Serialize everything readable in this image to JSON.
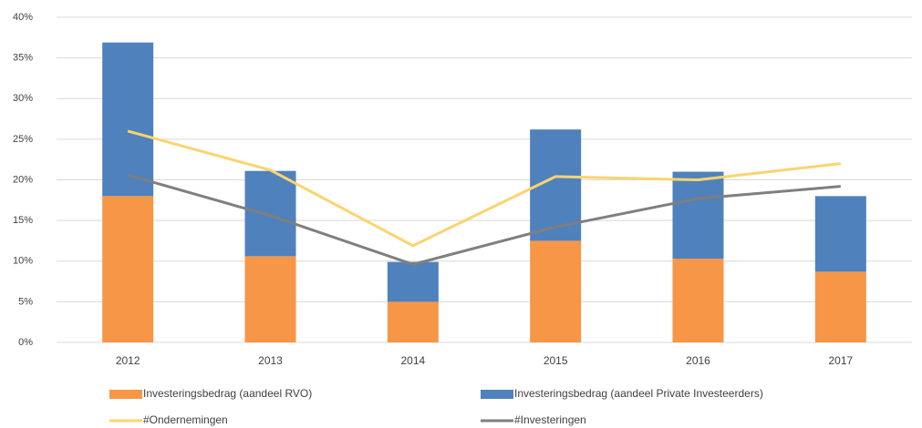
{
  "chart_data": {
    "type": "bar_line",
    "categories": [
      "2012",
      "2013",
      "2014",
      "2015",
      "2016",
      "2017"
    ],
    "series": [
      {
        "name": "Investeringsbedrag (aandeel RVO)",
        "type": "bar",
        "color": "#f79646",
        "values": [
          18,
          10.6,
          5,
          12.5,
          10.3,
          8.7
        ]
      },
      {
        "name": "Investeringsbedrag (aandeel Private Investeerders)",
        "type": "bar",
        "color": "#4f81bd",
        "values": [
          18.9,
          10.5,
          4.9,
          13.7,
          10.7,
          9.3
        ]
      },
      {
        "name": "#Ondernemingen",
        "type": "line",
        "color": "#fbd46d",
        "values": [
          26,
          21.2,
          11.9,
          20.4,
          20,
          22
        ]
      },
      {
        "name": "#Investeringen",
        "type": "line",
        "color": "#7f7f7f",
        "values": [
          20.6,
          15.6,
          9.6,
          14.2,
          17.7,
          19.2
        ]
      }
    ],
    "stacked": true,
    "ylim": [
      0,
      40
    ],
    "yticks": [
      {
        "value": 0,
        "label": "0%"
      },
      {
        "value": 5,
        "label": "5%"
      },
      {
        "value": 10,
        "label": "10%"
      },
      {
        "value": 15,
        "label": "15%"
      },
      {
        "value": 20,
        "label": "20%"
      },
      {
        "value": 25,
        "label": "25%"
      },
      {
        "value": 30,
        "label": "30%"
      },
      {
        "value": 35,
        "label": "35%"
      },
      {
        "value": 40,
        "label": "40%"
      }
    ],
    "grid": true,
    "legend": "bottom"
  }
}
